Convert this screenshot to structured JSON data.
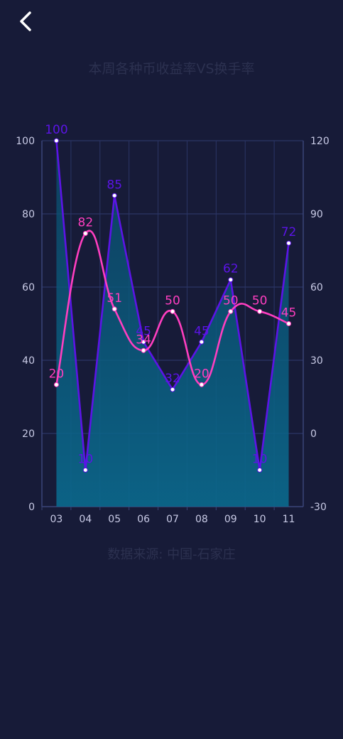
{
  "header": {
    "back_icon": "chevron-left-icon"
  },
  "colors": {
    "background": "#171b38",
    "grid": "#2b3566",
    "series_a": "#5b14e6",
    "series_b": "#ff3ec0",
    "area_top": "#0a4f70",
    "area_bottom": "#0a6a8e",
    "muted_text": "#2c3150"
  },
  "chart_data": {
    "type": "line",
    "title": "本周各种币收益率VS换手率",
    "source": "数据来源: 中国-石家庄",
    "categories": [
      "03",
      "04",
      "05",
      "06",
      "07",
      "08",
      "09",
      "10",
      "11"
    ],
    "y_left": {
      "min": 0,
      "max": 100,
      "ticks": [
        "0",
        "20",
        "40",
        "60",
        "80",
        "100"
      ]
    },
    "y_right": {
      "min": -30,
      "max": 120,
      "ticks": [
        "-30",
        "0",
        "30",
        "60",
        "90",
        "120"
      ]
    },
    "grid": true,
    "series": [
      {
        "axis": "left",
        "color": "#5b14e6",
        "smooth": false,
        "area": true,
        "values": [
          100,
          10,
          85,
          45,
          32,
          45,
          62,
          10,
          72
        ]
      },
      {
        "axis": "right",
        "color": "#ff3ec0",
        "smooth": true,
        "area": false,
        "values": [
          20,
          82,
          51,
          34,
          50,
          20,
          50,
          50,
          45
        ]
      }
    ]
  }
}
